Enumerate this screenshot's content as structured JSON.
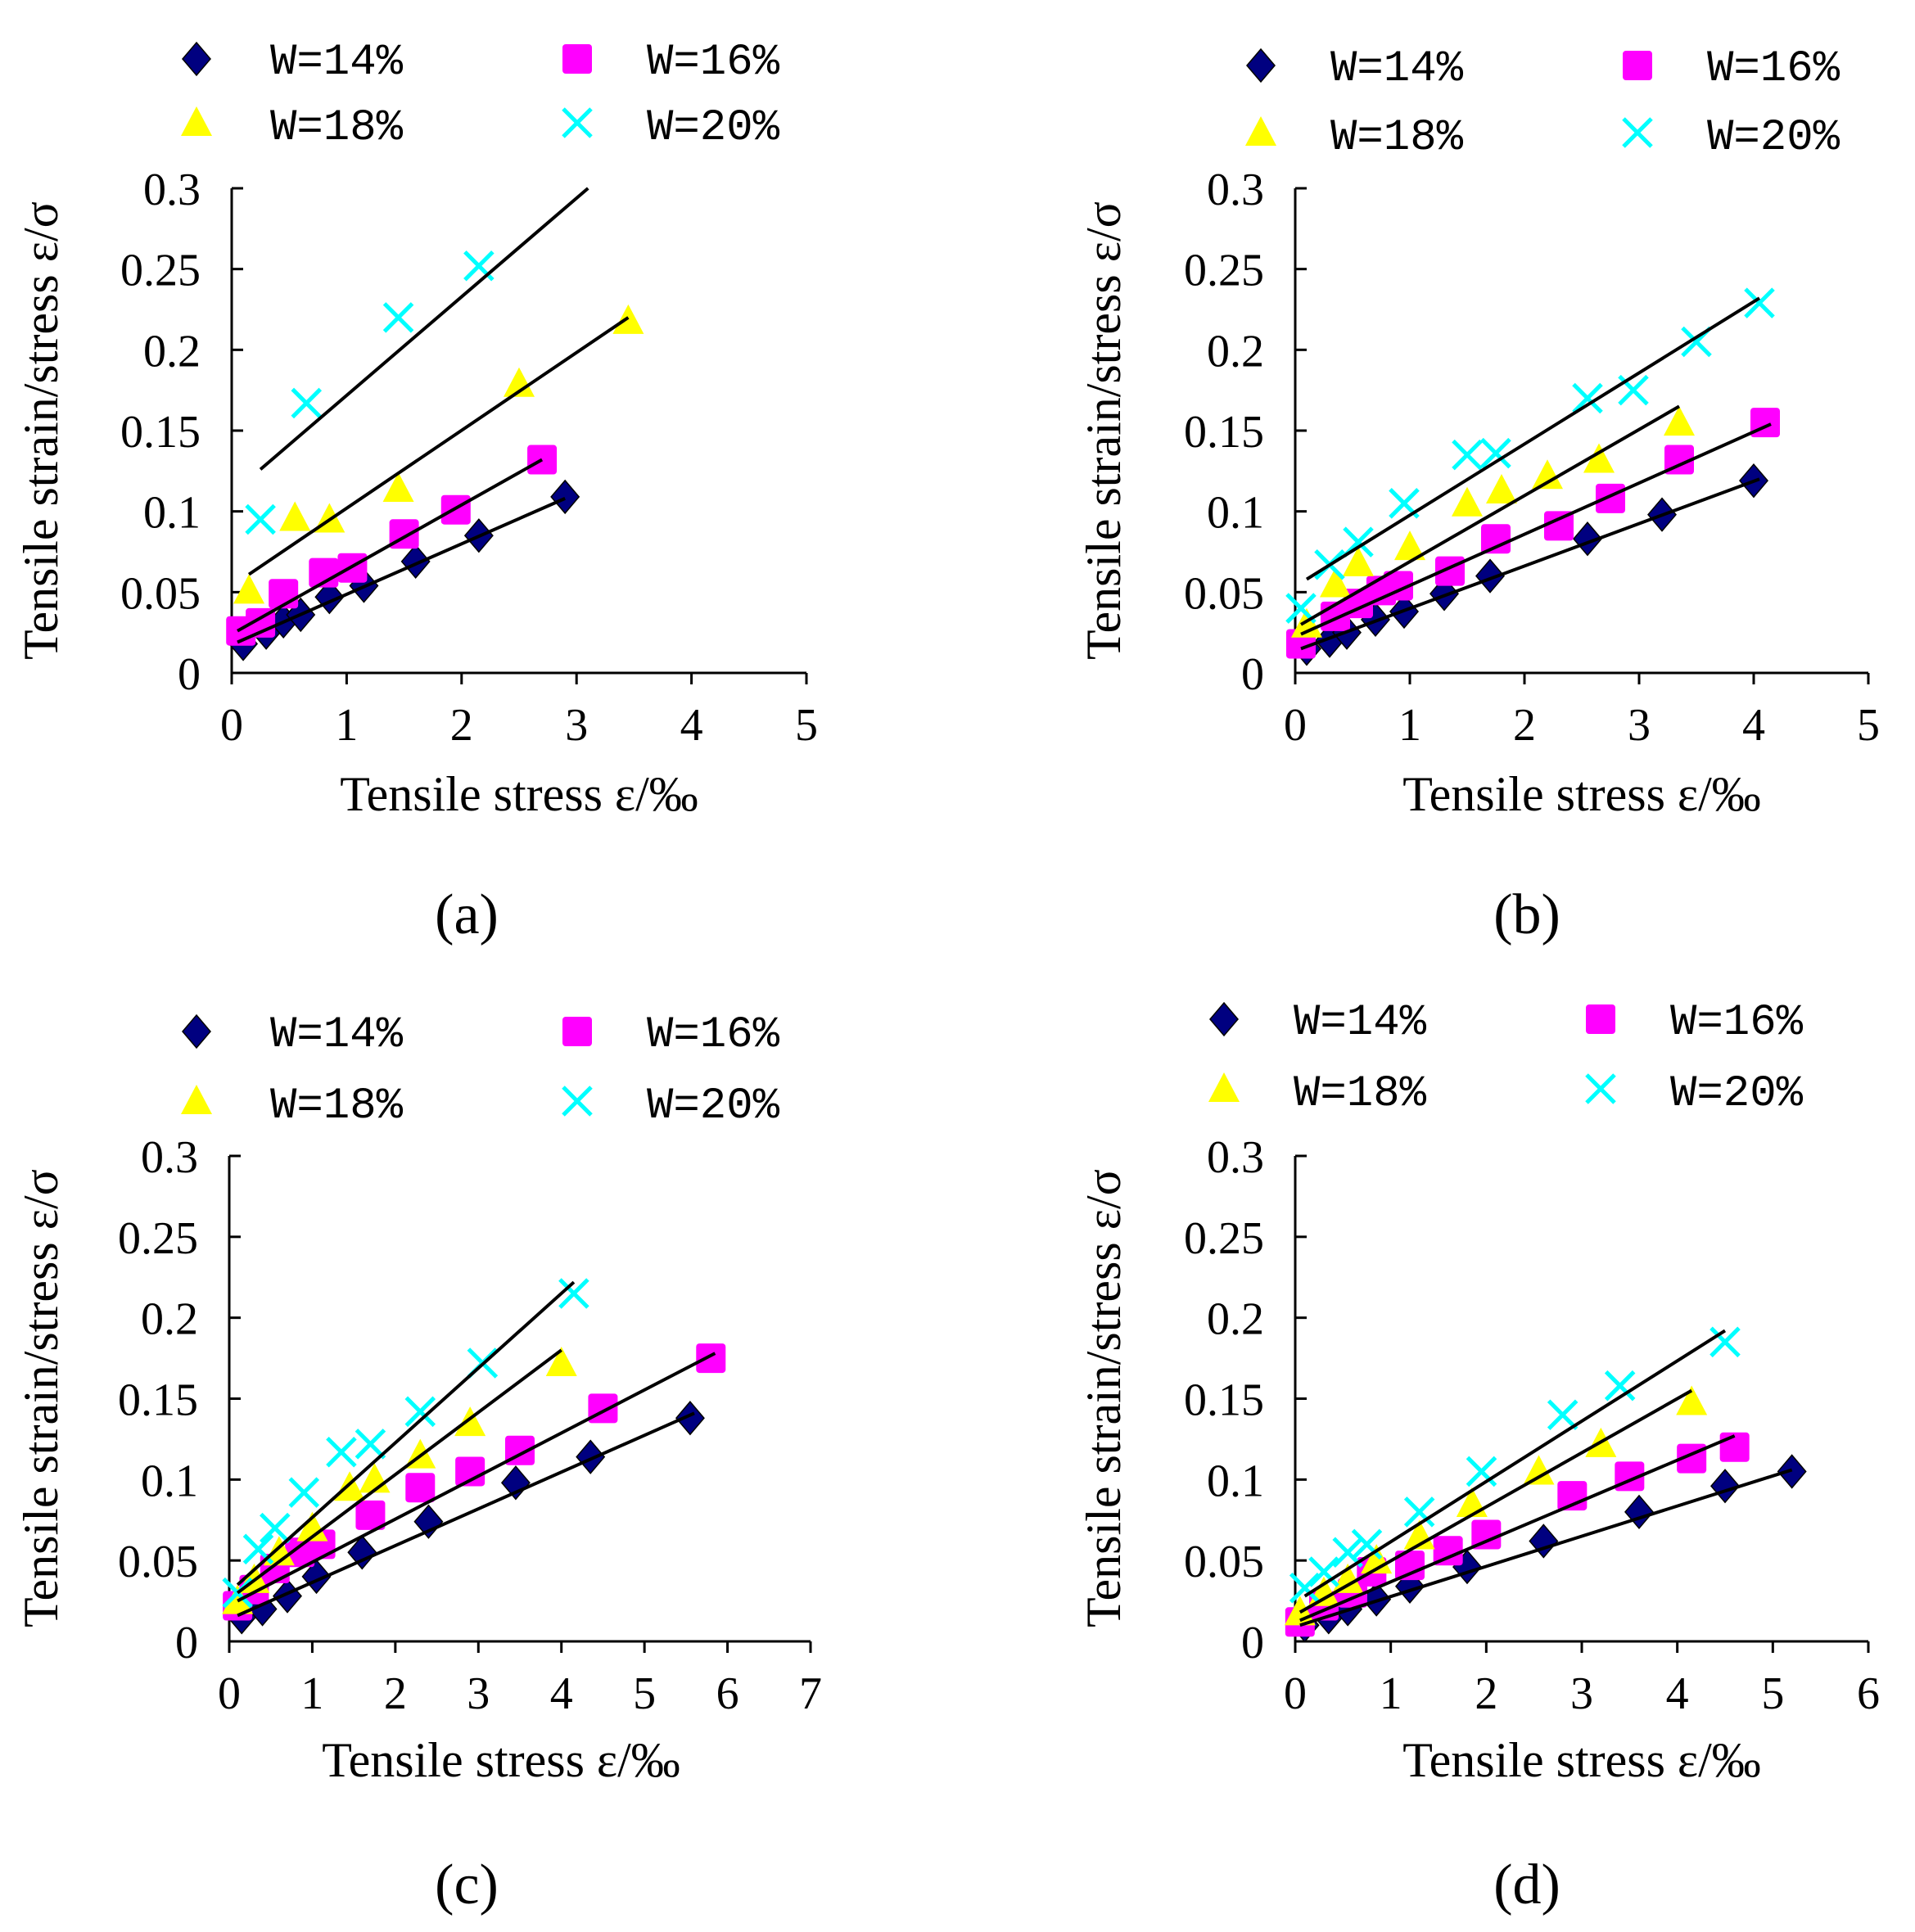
{
  "figure": {
    "panels": [
      "a",
      "b",
      "c",
      "d"
    ]
  },
  "chart_data": [
    {
      "panel": "a",
      "type": "scatter",
      "caption": "(a)",
      "xlabel": "Tensile stress ε/‰",
      "ylabel": "Tensile strain/stress ε/σ",
      "xlim": [
        0,
        5
      ],
      "ylim": [
        0,
        0.3
      ],
      "xticks": [
        "0",
        "1",
        "2",
        "3",
        "4",
        "5"
      ],
      "yticks": [
        "0",
        "0.05",
        "0.1",
        "0.15",
        "0.2",
        "0.25",
        "0.3"
      ],
      "legend": [
        "W=14%",
        "W=16%",
        "W=18%",
        "W=20%"
      ],
      "series": [
        {
          "name": "W=14%",
          "marker": "diamond",
          "color": "#000080",
          "points": [
            [
              0.1,
              0.018
            ],
            [
              0.3,
              0.025
            ],
            [
              0.45,
              0.032
            ],
            [
              0.6,
              0.036
            ],
            [
              0.85,
              0.047
            ],
            [
              1.15,
              0.054
            ],
            [
              1.6,
              0.069
            ],
            [
              2.15,
              0.085
            ],
            [
              2.9,
              0.109
            ]
          ],
          "fit": [
            [
              0.05,
              0.019
            ],
            [
              2.9,
              0.108
            ]
          ]
        },
        {
          "name": "W=16%",
          "marker": "square",
          "color": "#FF00FF",
          "points": [
            [
              0.08,
              0.026
            ],
            [
              0.25,
              0.031
            ],
            [
              0.45,
              0.049
            ],
            [
              0.8,
              0.062
            ],
            [
              1.05,
              0.065
            ],
            [
              1.5,
              0.086
            ],
            [
              1.95,
              0.101
            ],
            [
              2.7,
              0.132
            ]
          ],
          "fit": [
            [
              0.05,
              0.026
            ],
            [
              2.7,
              0.132
            ]
          ]
        },
        {
          "name": "W=18%",
          "marker": "triangle",
          "color": "#FFFF00",
          "points": [
            [
              0.15,
              0.051
            ],
            [
              0.55,
              0.096
            ],
            [
              0.85,
              0.095
            ],
            [
              1.45,
              0.114
            ],
            [
              2.5,
              0.179
            ],
            [
              3.45,
              0.218
            ]
          ],
          "fit": [
            [
              0.15,
              0.061
            ],
            [
              3.45,
              0.22
            ]
          ]
        },
        {
          "name": "W=20%",
          "marker": "x",
          "color": "#00FFFF",
          "points": [
            [
              0.25,
              0.095
            ],
            [
              0.65,
              0.167
            ],
            [
              1.45,
              0.22
            ],
            [
              2.15,
              0.252
            ]
          ],
          "fit": [
            [
              0.25,
              0.126
            ],
            [
              3.1,
              0.3
            ]
          ]
        }
      ]
    },
    {
      "panel": "b",
      "type": "scatter",
      "caption": "(b)",
      "xlabel": "Tensile stress ε/‰",
      "ylabel": "Tensile strain/stress ε/σ",
      "xlim": [
        0,
        5
      ],
      "ylim": [
        0,
        0.3
      ],
      "xticks": [
        "0",
        "1",
        "2",
        "3",
        "4",
        "5"
      ],
      "yticks": [
        "0",
        "0.05",
        "0.1",
        "0.15",
        "0.2",
        "0.25",
        "0.3"
      ],
      "legend": [
        "W=14%",
        "W=16%",
        "W=18%",
        "W=20%"
      ],
      "series": [
        {
          "name": "W=14%",
          "marker": "diamond",
          "color": "#000080",
          "points": [
            [
              0.1,
              0.015
            ],
            [
              0.3,
              0.02
            ],
            [
              0.45,
              0.025
            ],
            [
              0.7,
              0.033
            ],
            [
              0.95,
              0.038
            ],
            [
              1.3,
              0.049
            ],
            [
              1.7,
              0.06
            ],
            [
              2.55,
              0.083
            ],
            [
              3.2,
              0.098
            ],
            [
              4.0,
              0.119
            ]
          ],
          "fit": [
            [
              0.05,
              0.015
            ],
            [
              4.05,
              0.12
            ]
          ]
        },
        {
          "name": "W=16%",
          "marker": "square",
          "color": "#FF00FF",
          "points": [
            [
              0.05,
              0.018
            ],
            [
              0.35,
              0.035
            ],
            [
              0.55,
              0.043
            ],
            [
              0.75,
              0.051
            ],
            [
              0.9,
              0.054
            ],
            [
              1.35,
              0.063
            ],
            [
              1.75,
              0.083
            ],
            [
              2.3,
              0.091
            ],
            [
              2.75,
              0.108
            ],
            [
              3.35,
              0.132
            ],
            [
              4.1,
              0.155
            ]
          ],
          "fit": [
            [
              0.05,
              0.024
            ],
            [
              4.15,
              0.154
            ]
          ]
        },
        {
          "name": "W=18%",
          "marker": "triangle",
          "color": "#FFFF00",
          "points": [
            [
              0.1,
              0.03
            ],
            [
              0.35,
              0.055
            ],
            [
              0.55,
              0.068
            ],
            [
              1.0,
              0.078
            ],
            [
              1.5,
              0.105
            ],
            [
              1.8,
              0.113
            ],
            [
              2.2,
              0.122
            ],
            [
              2.65,
              0.132
            ],
            [
              3.35,
              0.155
            ]
          ],
          "fit": [
            [
              0.05,
              0.03
            ],
            [
              3.35,
              0.165
            ]
          ]
        },
        {
          "name": "W=20%",
          "marker": "x",
          "color": "#00FFFF",
          "points": [
            [
              0.05,
              0.04
            ],
            [
              0.3,
              0.067
            ],
            [
              0.55,
              0.081
            ],
            [
              0.95,
              0.105
            ],
            [
              1.5,
              0.135
            ],
            [
              1.75,
              0.136
            ],
            [
              2.55,
              0.17
            ],
            [
              2.95,
              0.175
            ],
            [
              3.5,
              0.205
            ],
            [
              4.05,
              0.229
            ]
          ],
          "fit": [
            [
              0.1,
              0.058
            ],
            [
              4.05,
              0.232
            ]
          ]
        }
      ]
    },
    {
      "panel": "c",
      "type": "scatter",
      "caption": "(c)",
      "xlabel": "Tensile stress ε/‰",
      "ylabel": "Tensile strain/stress ε/σ",
      "xlim": [
        0,
        7
      ],
      "ylim": [
        0,
        0.3
      ],
      "xticks": [
        "0",
        "1",
        "2",
        "3",
        "4",
        "5",
        "6",
        "7"
      ],
      "yticks": [
        "0",
        "0.05",
        "0.1",
        "0.15",
        "0.2",
        "0.25",
        "0.3"
      ],
      "legend": [
        "W=14%",
        "W=16%",
        "W=18%",
        "W=20%"
      ],
      "series": [
        {
          "name": "W=14%",
          "marker": "diamond",
          "color": "#000080",
          "points": [
            [
              0.15,
              0.015
            ],
            [
              0.4,
              0.02
            ],
            [
              0.7,
              0.028
            ],
            [
              1.05,
              0.04
            ],
            [
              1.6,
              0.055
            ],
            [
              2.4,
              0.074
            ],
            [
              3.45,
              0.098
            ],
            [
              4.35,
              0.114
            ],
            [
              5.55,
              0.138
            ]
          ],
          "fit": [
            [
              0.1,
              0.016
            ],
            [
              5.6,
              0.141
            ]
          ]
        },
        {
          "name": "W=16%",
          "marker": "square",
          "color": "#FF00FF",
          "points": [
            [
              0.1,
              0.022
            ],
            [
              0.3,
              0.032
            ],
            [
              0.55,
              0.045
            ],
            [
              0.85,
              0.055
            ],
            [
              1.1,
              0.06
            ],
            [
              1.7,
              0.078
            ],
            [
              2.3,
              0.095
            ],
            [
              2.9,
              0.105
            ],
            [
              3.5,
              0.118
            ],
            [
              4.5,
              0.144
            ],
            [
              5.8,
              0.175
            ]
          ],
          "fit": [
            [
              0.1,
              0.025
            ],
            [
              5.85,
              0.178
            ]
          ]
        },
        {
          "name": "W=18%",
          "marker": "triangle",
          "color": "#FFFF00",
          "points": [
            [
              0.1,
              0.025
            ],
            [
              0.3,
              0.038
            ],
            [
              0.6,
              0.055
            ],
            [
              1.0,
              0.07
            ],
            [
              1.45,
              0.095
            ],
            [
              1.75,
              0.1
            ],
            [
              2.3,
              0.115
            ],
            [
              2.9,
              0.135
            ],
            [
              4.0,
              0.172
            ]
          ],
          "fit": [
            [
              0.1,
              0.03
            ],
            [
              4.0,
              0.18
            ]
          ]
        },
        {
          "name": "W=20%",
          "marker": "x",
          "color": "#00FFFF",
          "points": [
            [
              0.1,
              0.03
            ],
            [
              0.35,
              0.057
            ],
            [
              0.55,
              0.07
            ],
            [
              0.9,
              0.092
            ],
            [
              1.35,
              0.117
            ],
            [
              1.7,
              0.122
            ],
            [
              2.3,
              0.142
            ],
            [
              3.05,
              0.172
            ],
            [
              4.15,
              0.215
            ]
          ],
          "fit": [
            [
              0.1,
              0.035
            ],
            [
              4.15,
              0.222
            ]
          ]
        }
      ]
    },
    {
      "panel": "d",
      "type": "scatter",
      "caption": "(d)",
      "xlabel": "Tensile stress ε/‰",
      "ylabel": "Tensile strain/stress ε/σ",
      "xlim": [
        0,
        6
      ],
      "ylim": [
        0,
        0.3
      ],
      "xticks": [
        "0",
        "1",
        "2",
        "3",
        "4",
        "5",
        "6"
      ],
      "yticks": [
        "0",
        "0.05",
        "0.1",
        "0.15",
        "0.2",
        "0.25",
        "0.3"
      ],
      "legend": [
        "W=14%",
        "W=16%",
        "W=18%",
        "W=20%"
      ],
      "series": [
        {
          "name": "W=14%",
          "marker": "diamond",
          "color": "#000080",
          "points": [
            [
              0.1,
              0.01
            ],
            [
              0.35,
              0.015
            ],
            [
              0.55,
              0.02
            ],
            [
              0.85,
              0.026
            ],
            [
              1.2,
              0.034
            ],
            [
              1.8,
              0.046
            ],
            [
              2.6,
              0.062
            ],
            [
              3.6,
              0.08
            ],
            [
              4.5,
              0.096
            ],
            [
              5.2,
              0.105
            ]
          ],
          "fit": [
            [
              0.05,
              0.01
            ],
            [
              5.2,
              0.106
            ]
          ]
        },
        {
          "name": "W=16%",
          "marker": "square",
          "color": "#FF00FF",
          "points": [
            [
              0.05,
              0.012
            ],
            [
              0.3,
              0.022
            ],
            [
              0.6,
              0.03
            ],
            [
              0.8,
              0.043
            ],
            [
              1.2,
              0.047
            ],
            [
              1.6,
              0.056
            ],
            [
              2.0,
              0.066
            ],
            [
              2.9,
              0.09
            ],
            [
              3.5,
              0.102
            ],
            [
              4.15,
              0.113
            ],
            [
              4.6,
              0.12
            ]
          ],
          "fit": [
            [
              0.05,
              0.013
            ],
            [
              4.6,
              0.127
            ]
          ]
        },
        {
          "name": "W=18%",
          "marker": "triangle",
          "color": "#FFFF00",
          "points": [
            [
              0.05,
              0.018
            ],
            [
              0.3,
              0.03
            ],
            [
              0.55,
              0.038
            ],
            [
              0.85,
              0.05
            ],
            [
              1.3,
              0.065
            ],
            [
              1.85,
              0.085
            ],
            [
              2.55,
              0.105
            ],
            [
              3.2,
              0.122
            ],
            [
              4.15,
              0.148
            ]
          ],
          "fit": [
            [
              0.05,
              0.018
            ],
            [
              4.15,
              0.155
            ]
          ]
        },
        {
          "name": "W=20%",
          "marker": "x",
          "color": "#00FFFF",
          "points": [
            [
              0.1,
              0.033
            ],
            [
              0.3,
              0.043
            ],
            [
              0.55,
              0.055
            ],
            [
              0.75,
              0.06
            ],
            [
              1.3,
              0.08
            ],
            [
              1.95,
              0.105
            ],
            [
              2.8,
              0.14
            ],
            [
              3.4,
              0.158
            ],
            [
              4.5,
              0.185
            ]
          ],
          "fit": [
            [
              0.1,
              0.028
            ],
            [
              4.5,
              0.192
            ]
          ]
        }
      ]
    }
  ]
}
